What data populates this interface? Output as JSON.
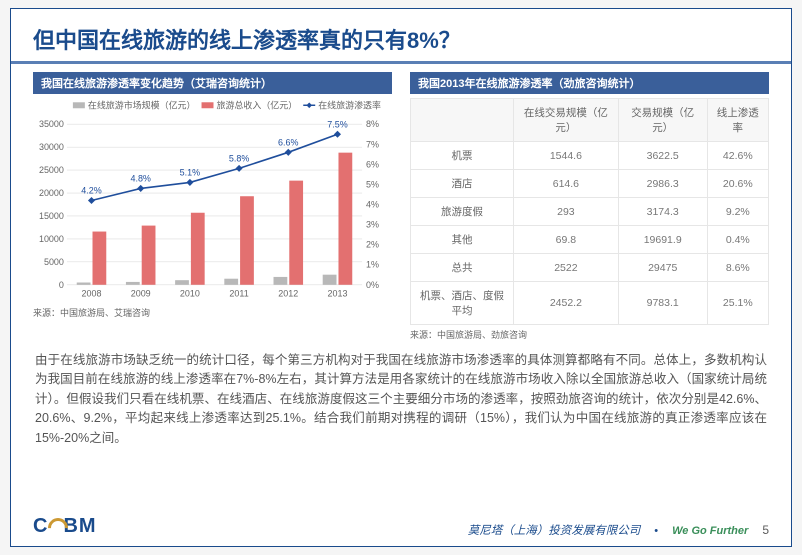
{
  "title": "但中国在线旅游的线上渗透率真的只有8%？",
  "left": {
    "heading": "我国在线旅游渗透率变化趋势（艾瑞咨询统计）",
    "source": "来源：中国旅游局、艾瑞咨询",
    "chart": {
      "type": "bar+line",
      "categories": [
        "2008",
        "2009",
        "2010",
        "2011",
        "2012",
        "2013"
      ],
      "left_axis": {
        "min": 0,
        "max": 35000,
        "step": 5000
      },
      "right_axis": {
        "min": 0,
        "max": 0.08,
        "step": 0.01,
        "labels": [
          "0%",
          "1%",
          "2%",
          "3%",
          "4%",
          "5%",
          "6%",
          "7%",
          "8%"
        ]
      },
      "series": {
        "online_scale": {
          "label": "在线旅游市场规模（亿元）",
          "color": "#b8b8b8",
          "values": [
            490,
            620,
            1000,
            1320,
            1710,
            2200
          ]
        },
        "total_rev": {
          "label": "旅游总收入（亿元）",
          "color": "#e37070",
          "values": [
            11600,
            12900,
            15700,
            19300,
            22700,
            28800
          ]
        },
        "penetration": {
          "label": "在线旅游渗透率",
          "color": "#1f4e9c",
          "values": [
            0.042,
            0.048,
            0.051,
            0.058,
            0.066,
            0.075
          ],
          "labels": [
            "4.2%",
            "4.8%",
            "5.1%",
            "5.8%",
            "6.6%",
            "7.5%"
          ]
        }
      },
      "grid_color": "#dddddd",
      "background": "#ffffff",
      "font_size": 9
    }
  },
  "right": {
    "heading": "我国2013年在线旅游渗透率（劲旅咨询统计）",
    "source": "来源：中国旅游局、劲旅咨询",
    "table": {
      "columns": [
        "",
        "在线交易规模（亿元）",
        "交易规模（亿元）",
        "线上渗透率"
      ],
      "rows": [
        [
          "机票",
          "1544.6",
          "3622.5",
          "42.6%"
        ],
        [
          "酒店",
          "614.6",
          "2986.3",
          "20.6%"
        ],
        [
          "旅游度假",
          "293",
          "3174.3",
          "9.2%"
        ],
        [
          "其他",
          "69.8",
          "19691.9",
          "0.4%"
        ],
        [
          "总共",
          "2522",
          "29475",
          "8.6%"
        ],
        [
          "机票、酒店、度假平均",
          "2452.2",
          "9783.1",
          "25.1%"
        ]
      ]
    }
  },
  "body_text": "由于在线旅游市场缺乏统一的统计口径，每个第三方机构对于我国在线旅游市场渗透率的具体测算都略有不同。总体上，多数机构认为我国目前在线旅游的线上渗透率在7%-8%左右，其计算方法是用各家统计的在线旅游市场收入除以全国旅游总收入（国家统计局统计）。但假设我们只看在线机票、在线酒店、在线旅游度假这三个主要细分市场的渗透率，按照劲旅咨询的统计，依次分别是42.6%、20.6%、9.2%，平均起来线上渗透率达到25.1%。结合我们前期对携程的调研（15%），我们认为中国在线旅游的真正渗透率应该在15%-20%之间。",
  "footer": {
    "logo_text": "CEBM",
    "company": "莫尼塔（上海）投资发展有限公司",
    "tagline": "We Go Further",
    "page": "5"
  }
}
